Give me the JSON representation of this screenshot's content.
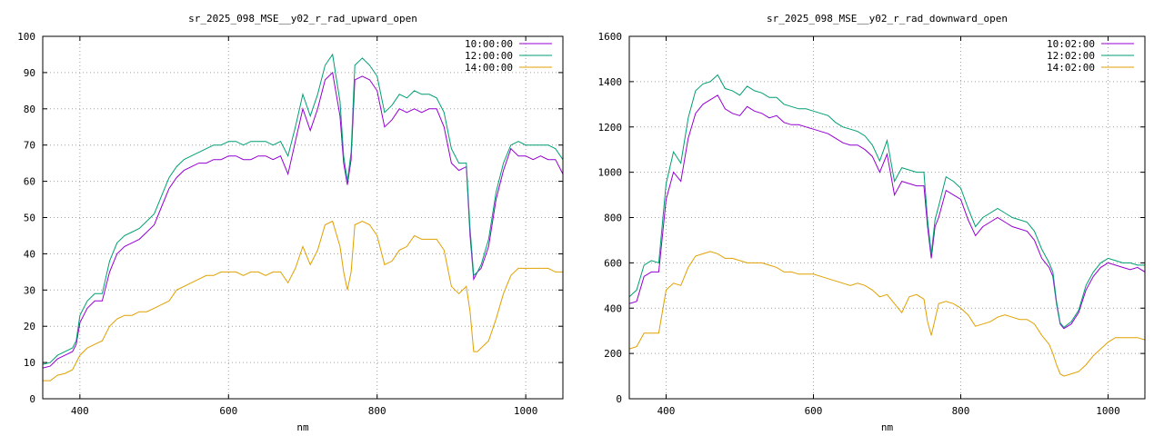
{
  "chart_data": [
    {
      "type": "line",
      "title": "sr_2025_098_MSE__y02_r_rad_upward_open",
      "xlabel": "nm",
      "ylabel": "",
      "xlim": [
        350,
        1050
      ],
      "ylim": [
        0,
        100
      ],
      "xticks": [
        400,
        600,
        800,
        1000
      ],
      "yticks": [
        0,
        10,
        20,
        30,
        40,
        50,
        60,
        70,
        80,
        90,
        100
      ],
      "grid": true,
      "legend": "top-right",
      "series": [
        {
          "name": "10:00:00",
          "color": "#9400d3",
          "x": [
            350,
            360,
            370,
            380,
            390,
            395,
            400,
            410,
            420,
            430,
            440,
            450,
            460,
            470,
            480,
            490,
            500,
            510,
            520,
            530,
            540,
            550,
            560,
            570,
            580,
            590,
            600,
            610,
            620,
            630,
            640,
            650,
            660,
            670,
            680,
            690,
            700,
            710,
            720,
            730,
            740,
            750,
            755,
            760,
            765,
            770,
            780,
            790,
            800,
            810,
            820,
            830,
            840,
            850,
            860,
            870,
            880,
            890,
            900,
            910,
            920,
            925,
            930,
            935,
            940,
            950,
            960,
            970,
            980,
            990,
            1000,
            1010,
            1020,
            1030,
            1040,
            1050
          ],
          "y": [
            8.5,
            9,
            11,
            12,
            13,
            15,
            21,
            25,
            27,
            27,
            35,
            40,
            42,
            43,
            44,
            46,
            48,
            53,
            58,
            61,
            63,
            64,
            65,
            65,
            66,
            66,
            67,
            67,
            66,
            66,
            67,
            67,
            66,
            67,
            62,
            71,
            80,
            74,
            80,
            88,
            90,
            78,
            65,
            59,
            66,
            88,
            89,
            88,
            85,
            75,
            77,
            80,
            79,
            80,
            79,
            80,
            80,
            75,
            65,
            63,
            64,
            45,
            33,
            35,
            36,
            42,
            55,
            63,
            69,
            67,
            67,
            66,
            67,
            66,
            66,
            62
          ]
        },
        {
          "name": "12:00:00",
          "color": "#009e73",
          "x": [
            350,
            360,
            370,
            380,
            390,
            395,
            400,
            410,
            420,
            430,
            440,
            450,
            460,
            470,
            480,
            490,
            500,
            510,
            520,
            530,
            540,
            550,
            560,
            570,
            580,
            590,
            600,
            610,
            620,
            630,
            640,
            650,
            660,
            670,
            680,
            690,
            700,
            710,
            720,
            730,
            740,
            750,
            755,
            760,
            765,
            770,
            780,
            790,
            800,
            810,
            820,
            830,
            840,
            850,
            860,
            870,
            880,
            890,
            900,
            910,
            920,
            925,
            930,
            935,
            940,
            950,
            960,
            970,
            980,
            990,
            1000,
            1010,
            1020,
            1030,
            1040,
            1050
          ],
          "y": [
            9.5,
            10,
            12,
            13,
            14,
            16,
            23,
            27,
            29,
            29,
            38,
            43,
            45,
            46,
            47,
            49,
            51,
            56,
            61,
            64,
            66,
            67,
            68,
            69,
            70,
            70,
            71,
            71,
            70,
            71,
            71,
            71,
            70,
            71,
            67,
            75,
            84,
            78,
            84,
            92,
            95,
            82,
            67,
            60,
            68,
            92,
            94,
            92,
            89,
            79,
            81,
            84,
            83,
            85,
            84,
            84,
            83,
            79,
            69,
            65,
            65,
            47,
            34,
            35,
            37,
            44,
            57,
            65,
            70,
            71,
            70,
            70,
            70,
            70,
            69,
            66
          ]
        },
        {
          "name": "14:00:00",
          "color": "#e0a000",
          "x": [
            350,
            360,
            370,
            380,
            390,
            395,
            400,
            410,
            420,
            430,
            440,
            450,
            460,
            470,
            480,
            490,
            500,
            510,
            520,
            530,
            540,
            550,
            560,
            570,
            580,
            590,
            600,
            610,
            620,
            630,
            640,
            650,
            660,
            670,
            680,
            690,
            700,
            710,
            720,
            730,
            740,
            750,
            755,
            760,
            765,
            770,
            780,
            790,
            800,
            810,
            820,
            830,
            840,
            850,
            860,
            870,
            880,
            890,
            900,
            910,
            920,
            925,
            930,
            935,
            940,
            950,
            960,
            970,
            980,
            990,
            1000,
            1010,
            1020,
            1030,
            1040,
            1050
          ],
          "y": [
            5,
            5,
            6.5,
            7,
            8,
            10,
            12,
            14,
            15,
            16,
            20,
            22,
            23,
            23,
            24,
            24,
            25,
            26,
            27,
            30,
            31,
            32,
            33,
            34,
            34,
            35,
            35,
            35,
            34,
            35,
            35,
            34,
            35,
            35,
            32,
            36,
            42,
            37,
            41,
            48,
            49,
            42,
            35,
            30,
            35,
            48,
            49,
            48,
            45,
            37,
            38,
            41,
            42,
            45,
            44,
            44,
            44,
            41,
            31,
            29,
            31,
            24,
            13,
            13,
            14,
            16,
            22,
            29,
            34,
            36,
            36,
            36,
            36,
            36,
            35,
            35
          ]
        }
      ]
    },
    {
      "type": "line",
      "title": "sr_2025_098_MSE__y02_r_rad_downward_open",
      "xlabel": "nm",
      "ylabel": "",
      "xlim": [
        350,
        1050
      ],
      "ylim": [
        0,
        1600
      ],
      "xticks": [
        400,
        600,
        800,
        1000
      ],
      "yticks": [
        0,
        200,
        400,
        600,
        800,
        1000,
        1200,
        1400,
        1600
      ],
      "grid": true,
      "legend": "top-right",
      "series": [
        {
          "name": "10:02:00",
          "color": "#9400d3",
          "x": [
            350,
            360,
            370,
            380,
            390,
            400,
            410,
            420,
            430,
            440,
            450,
            460,
            470,
            480,
            490,
            500,
            510,
            520,
            530,
            540,
            550,
            560,
            570,
            580,
            590,
            600,
            610,
            620,
            630,
            640,
            650,
            660,
            670,
            680,
            690,
            700,
            710,
            720,
            730,
            740,
            750,
            755,
            760,
            765,
            770,
            780,
            790,
            800,
            810,
            820,
            830,
            840,
            850,
            860,
            870,
            880,
            890,
            900,
            910,
            920,
            925,
            930,
            935,
            940,
            950,
            960,
            970,
            980,
            990,
            1000,
            1010,
            1020,
            1030,
            1040,
            1050
          ],
          "y": [
            420,
            430,
            540,
            560,
            560,
            880,
            1000,
            960,
            1150,
            1260,
            1300,
            1320,
            1340,
            1280,
            1260,
            1250,
            1290,
            1270,
            1260,
            1240,
            1250,
            1220,
            1210,
            1210,
            1200,
            1190,
            1180,
            1170,
            1150,
            1130,
            1120,
            1120,
            1100,
            1070,
            1000,
            1080,
            900,
            960,
            950,
            940,
            940,
            760,
            620,
            760,
            800,
            920,
            900,
            880,
            790,
            720,
            760,
            780,
            800,
            780,
            760,
            750,
            740,
            700,
            620,
            580,
            540,
            420,
            330,
            310,
            330,
            380,
            480,
            540,
            580,
            600,
            590,
            580,
            570,
            580,
            560
          ]
        },
        {
          "name": "12:02:00",
          "color": "#009e73",
          "x": [
            350,
            360,
            370,
            380,
            390,
            400,
            410,
            420,
            430,
            440,
            450,
            460,
            470,
            480,
            490,
            500,
            510,
            520,
            530,
            540,
            550,
            560,
            570,
            580,
            590,
            600,
            610,
            620,
            630,
            640,
            650,
            660,
            670,
            680,
            690,
            700,
            710,
            720,
            730,
            740,
            750,
            755,
            760,
            765,
            770,
            780,
            790,
            800,
            810,
            820,
            830,
            840,
            850,
            860,
            870,
            880,
            890,
            900,
            910,
            920,
            925,
            930,
            935,
            940,
            950,
            960,
            970,
            980,
            990,
            1000,
            1010,
            1020,
            1030,
            1040,
            1050
          ],
          "y": [
            450,
            480,
            590,
            610,
            600,
            950,
            1090,
            1040,
            1240,
            1360,
            1390,
            1400,
            1430,
            1370,
            1360,
            1340,
            1380,
            1360,
            1350,
            1330,
            1330,
            1300,
            1290,
            1280,
            1280,
            1270,
            1260,
            1250,
            1220,
            1200,
            1190,
            1180,
            1160,
            1120,
            1050,
            1140,
            960,
            1020,
            1010,
            1000,
            1000,
            790,
            640,
            790,
            850,
            980,
            960,
            930,
            840,
            760,
            800,
            820,
            840,
            820,
            800,
            790,
            780,
            740,
            660,
            600,
            560,
            430,
            335,
            315,
            340,
            390,
            500,
            560,
            600,
            620,
            610,
            600,
            600,
            590,
            590
          ]
        },
        {
          "name": "14:02:00",
          "color": "#e0a000",
          "x": [
            350,
            360,
            370,
            380,
            390,
            400,
            410,
            420,
            430,
            440,
            450,
            460,
            470,
            480,
            490,
            500,
            510,
            520,
            530,
            540,
            550,
            560,
            570,
            580,
            590,
            600,
            610,
            620,
            630,
            640,
            650,
            660,
            670,
            680,
            690,
            700,
            710,
            720,
            730,
            740,
            750,
            755,
            760,
            765,
            770,
            780,
            790,
            800,
            810,
            820,
            830,
            840,
            850,
            860,
            870,
            880,
            890,
            900,
            910,
            920,
            925,
            930,
            935,
            940,
            950,
            960,
            970,
            980,
            990,
            1000,
            1010,
            1020,
            1030,
            1040,
            1050
          ],
          "y": [
            220,
            230,
            290,
            290,
            290,
            480,
            510,
            500,
            580,
            630,
            640,
            650,
            640,
            620,
            620,
            610,
            600,
            600,
            600,
            590,
            580,
            560,
            560,
            550,
            550,
            550,
            540,
            530,
            520,
            510,
            500,
            510,
            500,
            480,
            450,
            460,
            420,
            380,
            450,
            460,
            440,
            340,
            280,
            350,
            420,
            430,
            420,
            400,
            370,
            320,
            330,
            340,
            360,
            370,
            360,
            350,
            350,
            330,
            280,
            240,
            200,
            150,
            110,
            100,
            110,
            120,
            150,
            190,
            220,
            250,
            270,
            270,
            270,
            270,
            260
          ]
        }
      ]
    }
  ]
}
